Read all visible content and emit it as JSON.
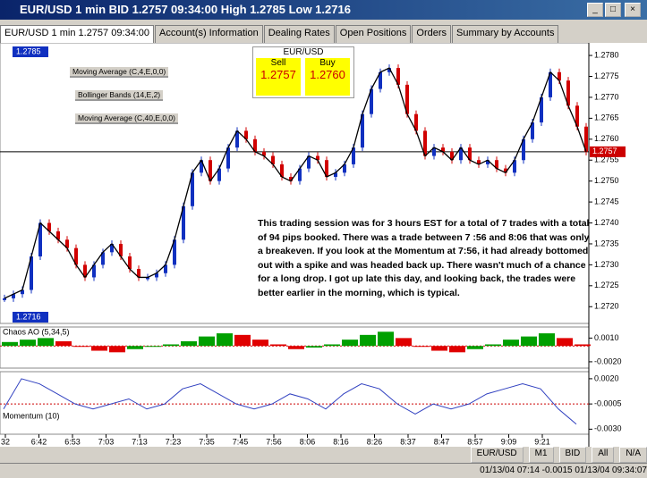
{
  "window": {
    "title": "EUR/USD 1 min BID 1.2757 09:34:00 High 1.2785 Low 1.2716"
  },
  "tabs": [
    "EUR/USD 1 min 1.2757 09:34:00",
    "Account(s) Information",
    "Dealing Rates",
    "Open Positions",
    "Orders",
    "Summary by Accounts"
  ],
  "dealing": {
    "pair": "EUR/USD",
    "sell_label": "Sell",
    "sell": "1.2757",
    "buy_label": "Buy",
    "buy": "1.2760"
  },
  "indicators": [
    "Moving Average (C,4,E,0,0)",
    "Bollinger Bands (14,E,2)",
    "Moving Average (C,40,E,0,0)"
  ],
  "high_label": "1.2785",
  "low_label": "1.2716",
  "annotation": "This trading session was for 3 hours EST for a total of 7 trades with a total of 94 pips booked.  There was a trade between 7 :56 and 8:06 that was only a breakeven.  If you look at the Momentum at 7:56, it had already bottomed out with a spike and was headed back up.  There wasn't much of a chance for a long drop.  I got up late this day, and looking back, the trades were better earlier in the morning, which is typical.",
  "price": {
    "ylim": [
      1.2716,
      1.2783
    ],
    "yticks": [
      {
        "value": 1.278,
        "label": "1.2780"
      },
      {
        "value": 1.2775,
        "label": "1.2775"
      },
      {
        "value": 1.277,
        "label": "1.2770"
      },
      {
        "value": 1.2765,
        "label": "1.2765"
      },
      {
        "value": 1.276,
        "label": "1.2760"
      },
      {
        "value": 1.2755,
        "label": "1.2755"
      },
      {
        "value": 1.275,
        "label": "1.2750"
      },
      {
        "value": 1.2745,
        "label": "1.2745"
      },
      {
        "value": 1.274,
        "label": "1.2740"
      },
      {
        "value": 1.2735,
        "label": "1.2735"
      },
      {
        "value": 1.273,
        "label": "1.2730"
      },
      {
        "value": 1.2725,
        "label": "1.2725"
      },
      {
        "value": 1.272,
        "label": "1.2720"
      }
    ],
    "current": 1.2757,
    "closes": [
      1.2722,
      1.2723,
      1.2724,
      1.2732,
      1.274,
      1.2738,
      1.2736,
      1.2734,
      1.273,
      1.2727,
      1.273,
      1.2733,
      1.2735,
      1.2732,
      1.2729,
      1.2727,
      1.2727,
      1.2728,
      1.273,
      1.2736,
      1.2744,
      1.2752,
      1.2755,
      1.275,
      1.2753,
      1.2758,
      1.2762,
      1.276,
      1.2757,
      1.2756,
      1.2754,
      1.2751,
      1.275,
      1.2753,
      1.2756,
      1.2755,
      1.2751,
      1.2752,
      1.2754,
      1.2758,
      1.2766,
      1.2772,
      1.2776,
      1.2777,
      1.2773,
      1.2766,
      1.2762,
      1.2756,
      1.2758,
      1.2757,
      1.2755,
      1.2758,
      1.2755,
      1.2754,
      1.2755,
      1.2753,
      1.2752,
      1.2755,
      1.276,
      1.2764,
      1.277,
      1.2776,
      1.2774,
      1.2768,
      1.2763,
      1.2757
    ]
  },
  "ao": {
    "name": "Chaos AO (5,34,5)",
    "ylim": [
      -0.0028,
      0.0024
    ],
    "yticks": [
      {
        "value": 0.001,
        "label": "0.0010"
      },
      {
        "value": -0.002,
        "label": "-0.0020"
      }
    ],
    "values": [
      0.0005,
      0.0008,
      0.001,
      0.0006,
      0,
      -0.0006,
      -0.0008,
      -0.0004,
      0,
      0.0002,
      0.0006,
      0.0012,
      0.0016,
      0.0014,
      0.0008,
      0.0002,
      -0.0004,
      -0.0002,
      0.0002,
      0.0008,
      0.0014,
      0.0018,
      0.001,
      0,
      -0.0006,
      -0.0008,
      -0.0004,
      0.0002,
      0.0008,
      0.0012,
      0.0016,
      0.001,
      0.0002
    ]
  },
  "momentum": {
    "name": "Momentum (10)",
    "ylim": [
      -0.0035,
      0.0027
    ],
    "yticks": [
      {
        "value": 0.002,
        "label": "0.0020"
      },
      {
        "value": -0.0005,
        "label": "-0.0005"
      },
      {
        "value": -0.003,
        "label": "-0.0030"
      }
    ],
    "values": [
      -0.001,
      0.002,
      0.0015,
      0.0005,
      -0.0005,
      -0.001,
      -0.0005,
      0,
      -0.001,
      -0.0005,
      0.001,
      0.0015,
      0.0005,
      -0.0005,
      -0.001,
      -0.0005,
      0.0005,
      0,
      -0.001,
      0.0005,
      0.0015,
      0.001,
      -0.0005,
      -0.0015,
      -0.0005,
      -0.001,
      -0.0005,
      0.0005,
      0.001,
      0.0015,
      0.001,
      -0.001,
      -0.0025
    ]
  },
  "time_labels": [
    "32",
    "6:42",
    "6:53",
    "7:03",
    "7:13",
    "7:23",
    "7:35",
    "7:45",
    "7:56",
    "8:06",
    "8:16",
    "8:26",
    "8:37",
    "8:47",
    "8:57",
    "9:09",
    "9:21"
  ],
  "toolbar": [
    "EUR/USD",
    "M1",
    "BID",
    "All",
    "N/A"
  ],
  "status": "01/13/04 07:14 -0.0015 01/13/04 09:34:07"
}
